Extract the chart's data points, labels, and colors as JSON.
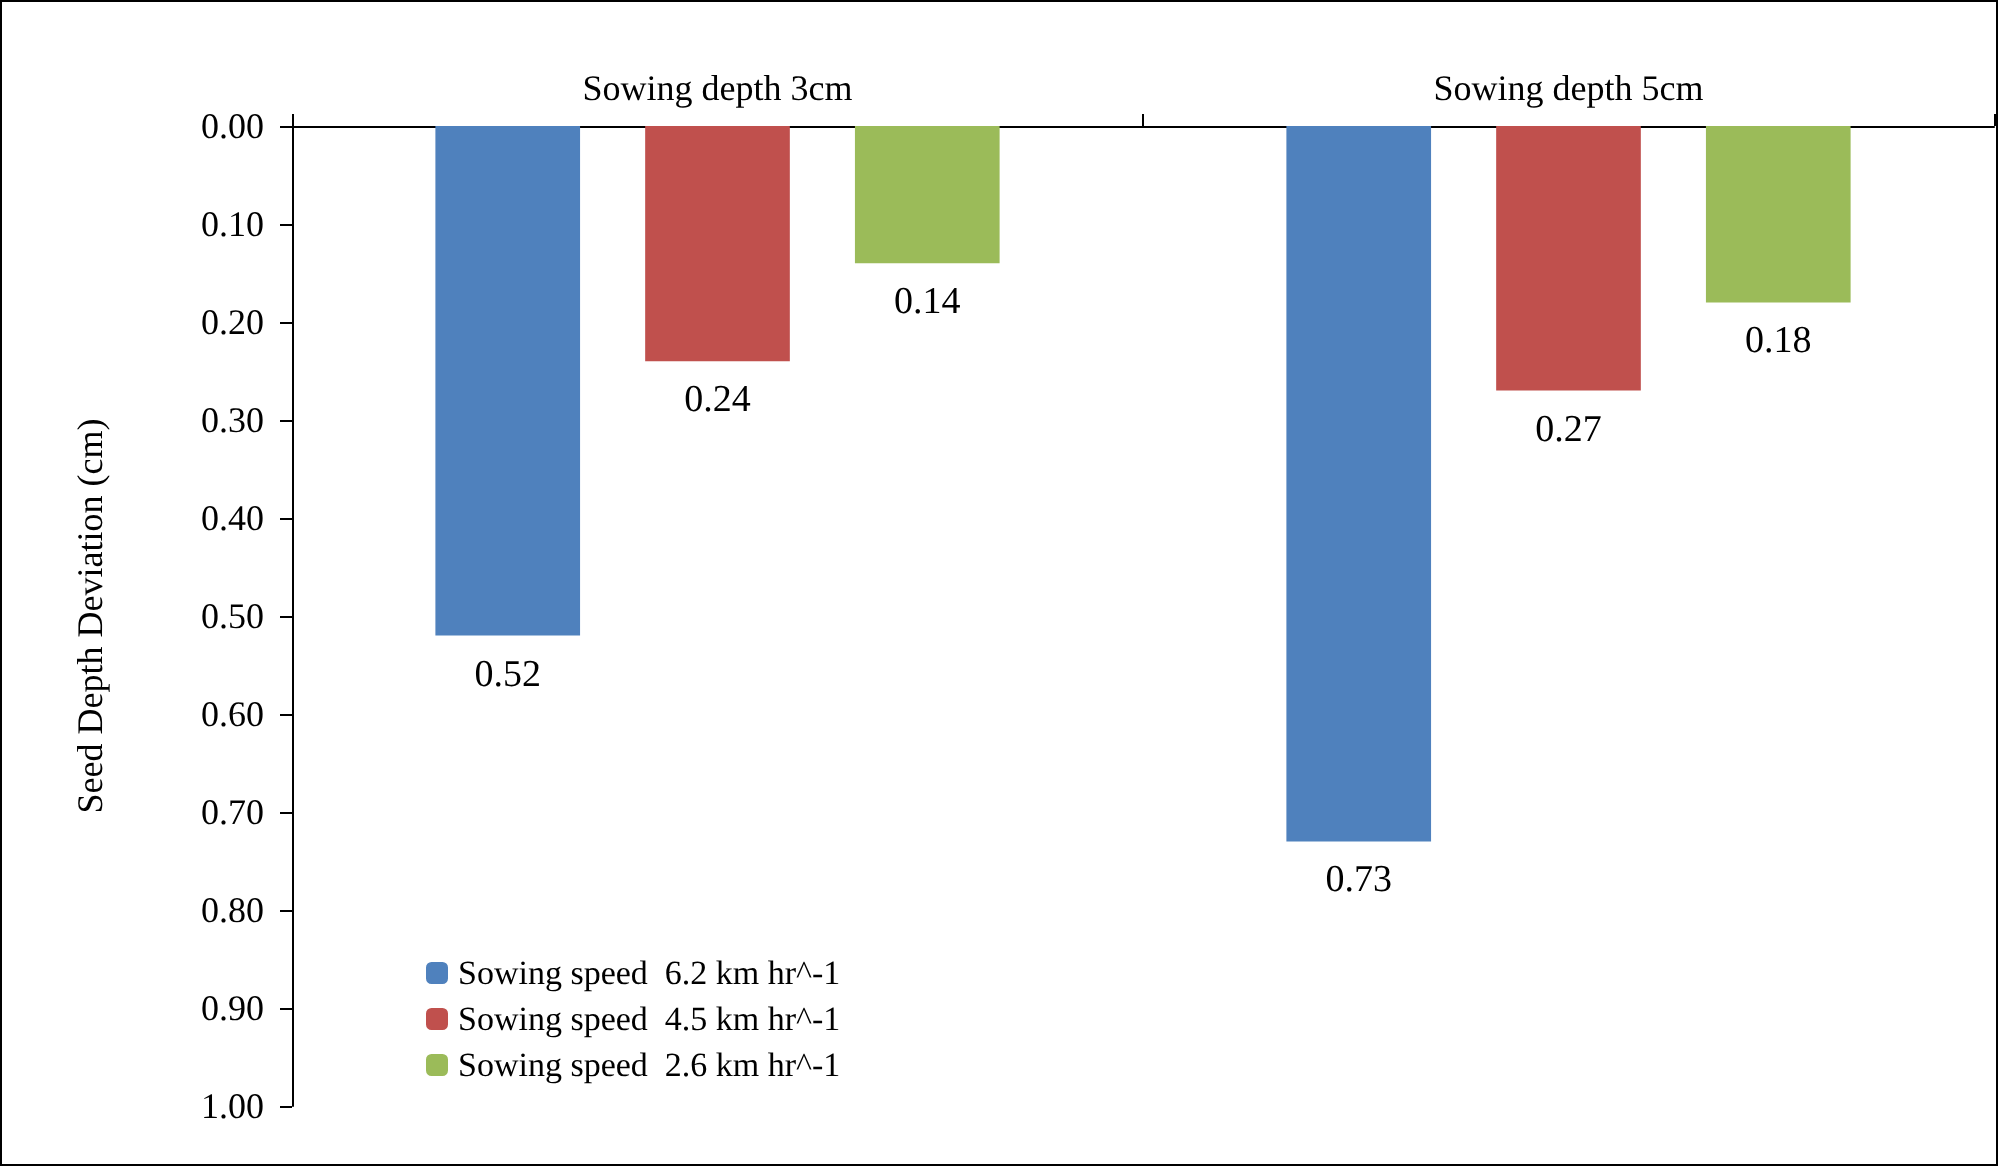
{
  "chart_data": {
    "type": "bar",
    "ylabel": "Seed Depth Deviation (cm)",
    "categories": [
      "Sowing depth 3cm",
      "Sowing depth 5cm"
    ],
    "series": [
      {
        "name": "Sowing speed  6.2 km hr^-1",
        "color": "#4f81bd",
        "values": [
          0.52,
          0.73
        ]
      },
      {
        "name": "Sowing speed  4.5 km hr^-1",
        "color": "#c0504d",
        "values": [
          0.24,
          0.27
        ]
      },
      {
        "name": "Sowing speed  2.6 km hr^-1",
        "color": "#9bbb59",
        "values": [
          0.14,
          0.18
        ]
      }
    ],
    "ylim": [
      1,
      0
    ],
    "yticks": [
      {
        "value": 0,
        "label": "0.00"
      },
      {
        "value": 0.1,
        "label": "0.10"
      },
      {
        "value": 0.2,
        "label": "0.20"
      },
      {
        "value": 0.3,
        "label": "0.30"
      },
      {
        "value": 0.4,
        "label": "0.40"
      },
      {
        "value": 0.5,
        "label": "0.50"
      },
      {
        "value": 0.6,
        "label": "0.60"
      },
      {
        "value": 0.7,
        "label": "0.70"
      },
      {
        "value": 0.8,
        "label": "0.80"
      },
      {
        "value": 0.9,
        "label": "0.90"
      },
      {
        "value": 1,
        "label": "1.00"
      }
    ],
    "data_labels": true,
    "grid": false,
    "legend": "bottom left"
  }
}
